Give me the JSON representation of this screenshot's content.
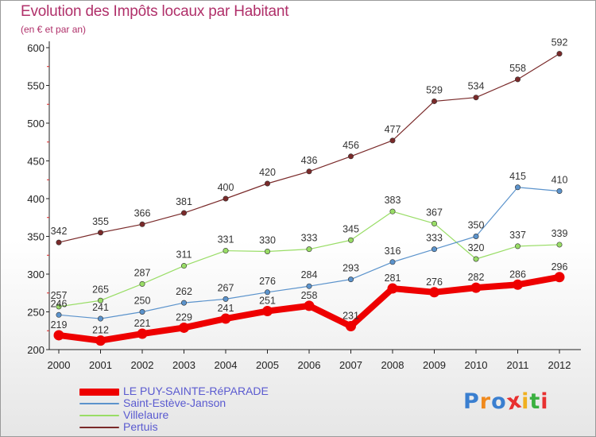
{
  "header": {
    "title": "Evolution des Impôts locaux par Habitant",
    "subtitle": "(en € et par an)"
  },
  "logo": {
    "text": "Proxiti",
    "letter_colors": [
      "#3a7fd0",
      "#f08a1e",
      "#3a7fd0",
      "#e83030",
      "#f0b020",
      "#3ab040",
      "#e83030"
    ]
  },
  "chart_data": {
    "type": "line",
    "title": "Evolution des Impôts locaux par Habitant",
    "subtitle": "(en € et par an)",
    "xlabel": "",
    "ylabel": "",
    "x": [
      "2000",
      "2001",
      "2002",
      "2003",
      "2004",
      "2005",
      "2006",
      "2007",
      "2008",
      "2009",
      "2010",
      "2011",
      "2012"
    ],
    "ylim": [
      200,
      600
    ],
    "yticks": [
      200,
      250,
      300,
      350,
      400,
      450,
      500,
      550,
      600
    ],
    "grid": false,
    "legend_position": "bottom-left",
    "series": [
      {
        "name": "LE PUY-SAINTE-RéPARADE",
        "color": "#ee0000",
        "values": [
          219,
          212,
          221,
          229,
          241,
          251,
          258,
          231,
          281,
          276,
          282,
          286,
          296
        ]
      },
      {
        "name": "Saint-Estève-Janson",
        "color": "#5b93cc",
        "values": [
          246,
          241,
          250,
          262,
          267,
          276,
          284,
          293,
          316,
          333,
          350,
          415,
          410
        ]
      },
      {
        "name": "Villelaure",
        "color": "#99dd66",
        "values": [
          257,
          265,
          287,
          311,
          331,
          330,
          333,
          345,
          383,
          367,
          320,
          337,
          339
        ]
      },
      {
        "name": "Pertuis",
        "color": "#7a2a2a",
        "values": [
          342,
          355,
          366,
          381,
          400,
          420,
          436,
          456,
          477,
          529,
          534,
          558,
          592
        ]
      }
    ]
  }
}
